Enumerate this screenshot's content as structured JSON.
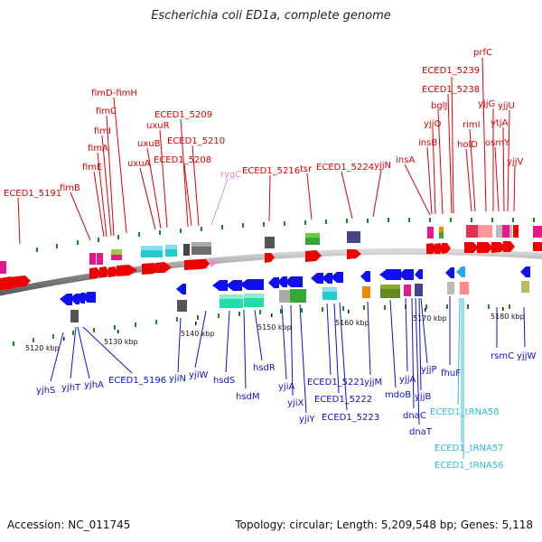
{
  "title": "Escherichia coli ED1a, complete genome",
  "footer": {
    "accession": "Accession: NC_011745",
    "summary": "Topology: circular; Length: 5,209,548 bp; Genes: 5,118"
  },
  "colors": {
    "forward": "#dd0000",
    "reverse": "#1010cc",
    "trna": "#33bbdd",
    "ncrna": "#ee88cc",
    "backbone": "#888888",
    "tick_green": "#1a8a1a"
  },
  "ticks": [
    "5120 kbp",
    "5130 kbp",
    "5140 kbp",
    "5150 kbp",
    "5160 kbp",
    "5170 kbp",
    "5180 kbp"
  ],
  "forward_genes": [
    "ECED1_5191",
    "fimB",
    "fimE",
    "fimA",
    "fimI",
    "fimC",
    "fimD-fimH",
    "uxuA",
    "uxuB",
    "uxuR",
    "ECED1_5209",
    "ECED1_5210",
    "ECED1_5208",
    "rygC",
    "ECED1_5216",
    "tsr",
    "ECED1_5224",
    "yjjN",
    "insA",
    "insB",
    "yjjQ",
    "bglJ",
    "ECED1_5238",
    "ECED1_5239",
    "prfC",
    "holD",
    "rimI",
    "yjjG",
    "osmY",
    "ytjA",
    "yjjU",
    "yjjV"
  ],
  "reverse_genes": [
    "yjhS",
    "yjhT",
    "yjhA",
    "ECED1_5196",
    "yjiN",
    "yjiW",
    "hsdS",
    "hsdM",
    "hsdR",
    "yjiA",
    "yjiX",
    "yjiY",
    "ECED1_5221",
    "ECED1_5222",
    "ECED1_5223",
    "yjjM",
    "mdoB",
    "yjjA",
    "dnaC",
    "dnaT",
    "yjjB",
    "yjjP",
    "fhuF",
    "rsmC",
    "yjjW"
  ],
  "trna_genes": [
    "ECED1_tRNA58",
    "ECED1_tRNA57",
    "ECED1_tRNA56"
  ]
}
